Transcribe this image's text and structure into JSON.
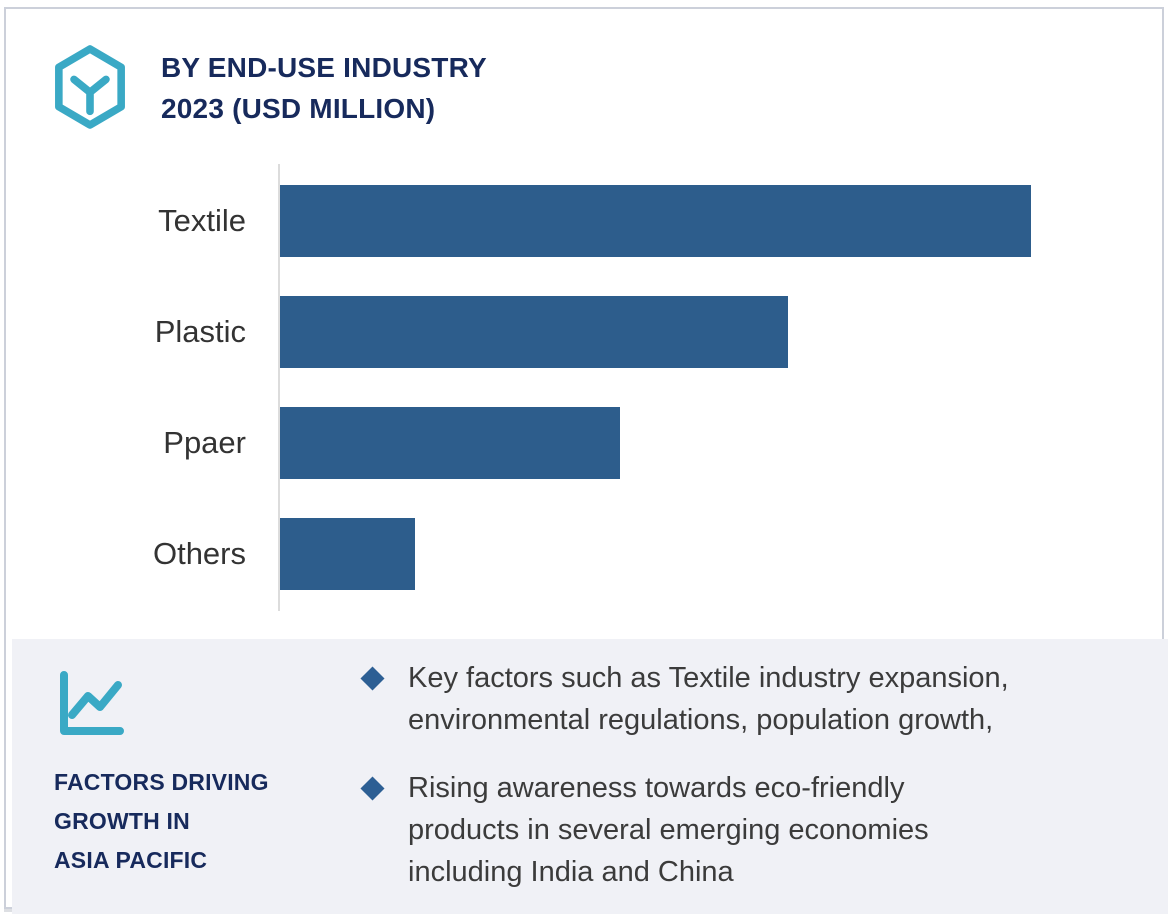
{
  "header": {
    "title": "BY END-USE INDUSTRY\n2023 (USD MILLION)",
    "icon": "hexagon-box-icon"
  },
  "chart_data": {
    "type": "bar",
    "orientation": "horizontal",
    "title": "BY END-USE INDUSTRY 2023 (USD MILLION)",
    "unit": "USD Million",
    "categories": [
      "Textile",
      "Plastic",
      "Ppaer",
      "Others"
    ],
    "values_relative_to_max_pct": [
      100,
      67.6,
      45.3,
      18
    ],
    "value_labels_shown": false,
    "axis_tick_labels_shown": false,
    "grid": false,
    "legend": "none",
    "bar_color": "#2d5d8c"
  },
  "factors": {
    "icon": "line-chart-icon",
    "heading": "FACTORS DRIVING\nGROWTH IN\nASIA PACIFIC",
    "bullets": [
      {
        "text": "Key factors such as Textile industry expansion,\nenvironmental regulations, population growth,"
      },
      {
        "text": "Rising awareness towards eco-friendly\nproducts in several emerging economies\nincluding India and China"
      }
    ]
  },
  "colors": {
    "bar_blue": "#2d5d8c",
    "navy_text": "#172a5c",
    "teal_icon": "#3aa9c5",
    "panel_background": "#f0f1f6",
    "body_text": "#3b3b3b",
    "bullet_diamond": "#2d5f94",
    "axis_line": "#dcdcdc",
    "card_border": "#ccd0da"
  }
}
